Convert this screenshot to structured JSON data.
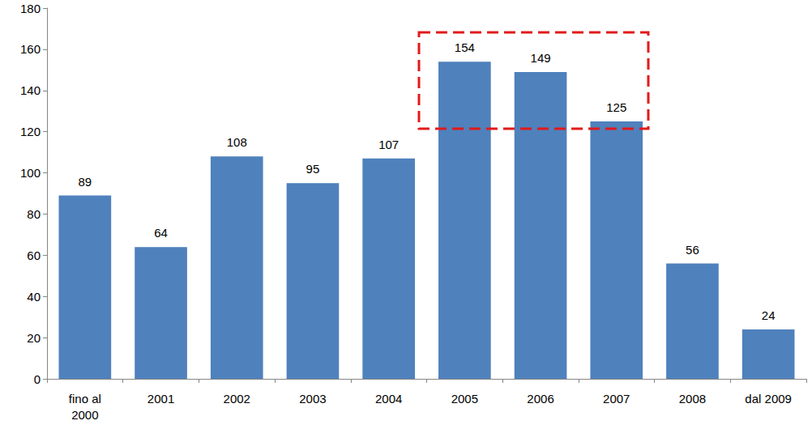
{
  "chart_data": {
    "type": "bar",
    "categories": [
      "fino al\n2000",
      "2001",
      "2002",
      "2003",
      "2004",
      "2005",
      "2006",
      "2007",
      "2008",
      "dal 2009"
    ],
    "values": [
      89,
      64,
      108,
      95,
      107,
      154,
      149,
      125,
      56,
      24
    ],
    "color": "#4f81bd",
    "ylim": [
      0,
      180
    ],
    "yticks": [
      0,
      20,
      40,
      60,
      80,
      100,
      120,
      140,
      160,
      180
    ],
    "grid": false,
    "data_labels": true
  }
}
